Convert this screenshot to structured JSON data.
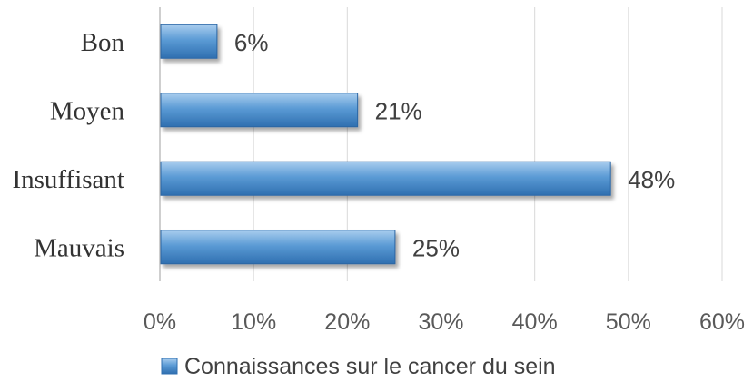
{
  "chart_data": {
    "type": "bar",
    "orientation": "horizontal",
    "categories": [
      "Bon",
      "Moyen",
      "Insuffisant",
      "Mauvais"
    ],
    "series": [
      {
        "name": "Connaissances sur le cancer du sein",
        "values": [
          6,
          21,
          48,
          25
        ],
        "color": "#5b9bd5"
      }
    ],
    "data_labels": [
      "6%",
      "21%",
      "48%",
      "25%"
    ],
    "x_ticks": [
      "0%",
      "10%",
      "20%",
      "30%",
      "40%",
      "50%",
      "60%"
    ],
    "xlim": [
      0,
      60
    ],
    "grid": true,
    "legend_position": "bottom",
    "title": "",
    "xlabel": "",
    "ylabel": ""
  }
}
